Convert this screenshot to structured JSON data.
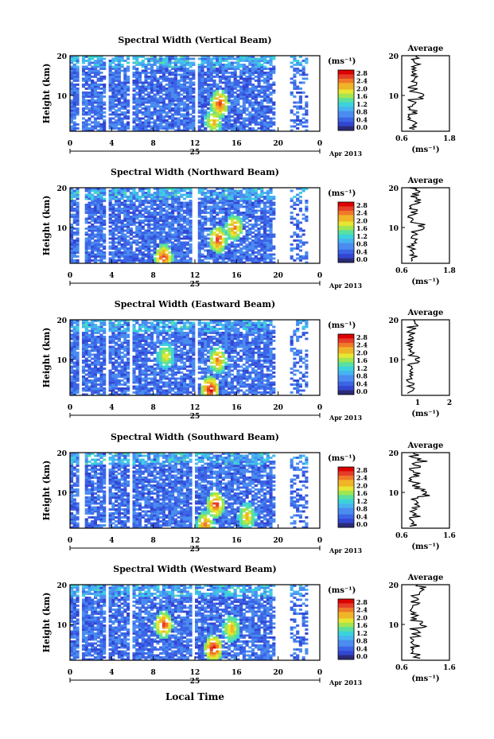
{
  "panels": [
    {
      "title": "Spectral Width (Vertical Beam)",
      "avg_xticks": [
        "0.6",
        "1.8"
      ],
      "avg_xlim": [
        0.6,
        1.8
      ]
    },
    {
      "title": "Spectral Width (Northward Beam)",
      "avg_xticks": [
        "0.6",
        "1.8"
      ],
      "avg_xlim": [
        0.6,
        1.8
      ]
    },
    {
      "title": "Spectral Width (Eastward Beam)",
      "avg_xticks": [
        "1",
        "2"
      ],
      "avg_xlim": [
        0.5,
        2.0
      ]
    },
    {
      "title": "Spectral Width (Southward Beam)",
      "avg_xticks": [
        "0.6",
        "1.6"
      ],
      "avg_xlim": [
        0.6,
        1.6
      ]
    },
    {
      "title": "Spectral Width (Westward Beam)",
      "avg_xticks": [
        "0.6",
        "1.6"
      ],
      "avg_xlim": [
        0.6,
        1.6
      ]
    }
  ],
  "ylabel": "Height (km)",
  "yticks": [
    "20",
    "10"
  ],
  "xticks": [
    "0",
    "4",
    "8",
    "12",
    "16",
    "20",
    "0"
  ],
  "day_label": "25",
  "date_label": "Apr 2013",
  "colorbar_unit": "(ms⁻¹)",
  "colorbar_ticks": [
    "2.8",
    "2.4",
    "2.0",
    "1.6",
    "1.2",
    "0.8",
    "0.4",
    "0.0"
  ],
  "avg_title": "Average",
  "avg_yticks": [
    "20",
    "10"
  ],
  "avg_xlabel": "(ms⁻¹)",
  "xlabel": "Local Time",
  "colors": {
    "scale": [
      "#2a2a78",
      "#3246d2",
      "#3c64e6",
      "#4a8cf0",
      "#46b4f0",
      "#3cd2dc",
      "#5ae0a0",
      "#a0e650",
      "#e6e632",
      "#f0b428",
      "#f07828",
      "#e63c28",
      "#dc0000"
    ],
    "background": "#ffffff"
  },
  "chart_data": [
    {
      "type": "heatmap",
      "title": "Spectral Width (Vertical Beam)",
      "xlabel": "",
      "ylabel": "Height (km)",
      "xlim": [
        0,
        24
      ],
      "ylim": [
        1,
        20
      ],
      "clim": [
        0.0,
        2.8
      ],
      "data_gaps_hours": [
        [
          1.0,
          1.2
        ],
        [
          3.5,
          3.7
        ],
        [
          5.8,
          6.0
        ],
        [
          12.0,
          12.3
        ],
        [
          17.9,
          18.1
        ],
        [
          19.8,
          21.0
        ],
        [
          22.9,
          24
        ]
      ],
      "hot_spots": [
        {
          "t": 14.4,
          "h": 8.0,
          "v": 2.6
        },
        {
          "t": 13.8,
          "h": 3.5,
          "v": 2.2
        }
      ],
      "avg_xlim": [
        0.6,
        1.8
      ]
    },
    {
      "type": "heatmap",
      "title": "Spectral Width (Northward Beam)",
      "xlabel": "",
      "ylabel": "Height (km)",
      "xlim": [
        0,
        24
      ],
      "ylim": [
        1,
        20
      ],
      "clim": [
        0.0,
        2.8
      ],
      "data_gaps_hours": [
        [
          1.0,
          1.3
        ],
        [
          3.5,
          3.8
        ],
        [
          11.8,
          12.2
        ],
        [
          19.7,
          21.0
        ],
        [
          23.0,
          24
        ]
      ],
      "hot_spots": [
        {
          "t": 14.2,
          "h": 7.0,
          "v": 2.6
        },
        {
          "t": 15.8,
          "h": 10.0,
          "v": 2.4
        },
        {
          "t": 9.0,
          "h": 2.5,
          "v": 2.6
        }
      ],
      "avg_xlim": [
        0.6,
        1.8
      ]
    },
    {
      "type": "heatmap",
      "title": "Spectral Width (Eastward Beam)",
      "xlabel": "",
      "ylabel": "Height (km)",
      "xlim": [
        0,
        24
      ],
      "ylim": [
        1,
        20
      ],
      "clim": [
        0.0,
        2.8
      ],
      "data_gaps_hours": [
        [
          0.9,
          1.1
        ],
        [
          3.4,
          3.6
        ],
        [
          5.8,
          6.0
        ],
        [
          11.9,
          12.2
        ],
        [
          19.8,
          21.0
        ],
        [
          23.0,
          24
        ]
      ],
      "hot_spots": [
        {
          "t": 13.5,
          "h": 2.5,
          "v": 2.8
        },
        {
          "t": 14.2,
          "h": 10.0,
          "v": 2.4
        },
        {
          "t": 9.2,
          "h": 11.0,
          "v": 2.0
        }
      ],
      "avg_xlim": [
        0.5,
        2.0
      ]
    },
    {
      "type": "heatmap",
      "title": "Spectral Width (Southward Beam)",
      "xlabel": "",
      "ylabel": "Height (km)",
      "xlim": [
        0,
        24
      ],
      "ylim": [
        1,
        20
      ],
      "clim": [
        0.0,
        2.8
      ],
      "data_gaps_hours": [
        [
          1.0,
          1.3
        ],
        [
          3.4,
          3.7
        ],
        [
          5.7,
          6.0
        ],
        [
          11.8,
          12.1
        ],
        [
          19.8,
          21.0
        ],
        [
          23.0,
          24
        ]
      ],
      "hot_spots": [
        {
          "t": 14.0,
          "h": 7.0,
          "v": 2.6
        },
        {
          "t": 13.0,
          "h": 2.0,
          "v": 2.4
        },
        {
          "t": 17.0,
          "h": 4.0,
          "v": 2.2
        }
      ],
      "avg_xlim": [
        0.6,
        1.6
      ]
    },
    {
      "type": "heatmap",
      "title": "Spectral Width (Westward Beam)",
      "xlabel": "Local Time",
      "ylabel": "Height (km)",
      "xlim": [
        0,
        24
      ],
      "ylim": [
        1,
        20
      ],
      "clim": [
        0.0,
        2.8
      ],
      "data_gaps_hours": [
        [
          0.9,
          1.1
        ],
        [
          3.4,
          3.6
        ],
        [
          5.8,
          6.0
        ],
        [
          11.8,
          12.1
        ],
        [
          19.8,
          21.0
        ],
        [
          23.0,
          24
        ]
      ],
      "hot_spots": [
        {
          "t": 13.8,
          "h": 4.0,
          "v": 2.8
        },
        {
          "t": 9.0,
          "h": 10.0,
          "v": 2.6
        },
        {
          "t": 15.5,
          "h": 9.0,
          "v": 2.2
        }
      ],
      "avg_xlim": [
        0.6,
        1.6
      ]
    }
  ]
}
